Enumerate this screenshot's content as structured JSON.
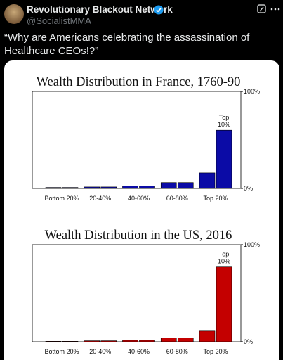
{
  "post": {
    "name": "Revolutionary Blackout Network",
    "handle": "@SocialistMMA",
    "text": "“Why are Americans celebrating the assassination of Healthcare CEOs!?”"
  },
  "chart_data": [
    {
      "type": "bar",
      "title": "Wealth Distribution in France, 1760-90",
      "categories": [
        "Bottom 20%",
        null,
        "20-40%",
        null,
        "40-60%",
        null,
        "60-80%",
        null,
        "Top 20%",
        null
      ],
      "values": [
        1,
        1,
        1.5,
        1.5,
        2.5,
        2.5,
        6,
        6,
        16,
        60
      ],
      "color": "#0b0ba6",
      "annotation": [
        "Top",
        "10%"
      ],
      "ylim": [
        0,
        100
      ],
      "yticks": [
        {
          "value": 0,
          "label": "0%"
        },
        {
          "value": 100,
          "label": "100%"
        }
      ]
    },
    {
      "type": "bar",
      "title": "Wealth Distribution in the US, 2016",
      "categories": [
        "Bottom 20%",
        null,
        "20-40%",
        null,
        "40-60%",
        null,
        "60-80%",
        null,
        "Top 20%",
        null
      ],
      "values": [
        0.5,
        0.5,
        1,
        1,
        1.5,
        1.5,
        4,
        4,
        11,
        77
      ],
      "color": "#c40000",
      "annotation": [
        "Top",
        "10%"
      ],
      "ylim": [
        0,
        100
      ],
      "yticks": [
        {
          "value": 0,
          "label": "0%"
        },
        {
          "value": 100,
          "label": "100%"
        }
      ]
    }
  ]
}
